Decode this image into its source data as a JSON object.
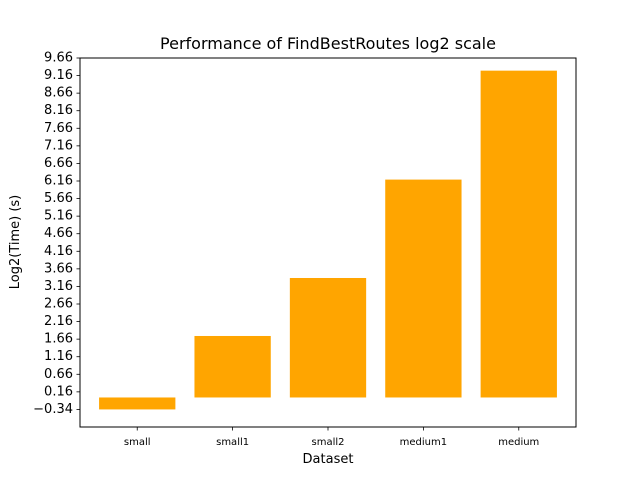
{
  "chart_data": {
    "type": "bar",
    "title": "Performance of FindBestRoutes log2 scale",
    "xlabel": "Dataset",
    "ylabel": "Log2(Time) (s)",
    "categories": [
      "small",
      "small1",
      "small2",
      "medium1",
      "medium"
    ],
    "values": [
      -0.34,
      1.75,
      3.4,
      6.2,
      9.3
    ],
    "ylim": [
      -0.84,
      9.66
    ],
    "yticks": [
      -0.34,
      0.16,
      0.66,
      1.16,
      1.66,
      2.16,
      2.66,
      3.16,
      3.66,
      4.16,
      4.66,
      5.16,
      5.66,
      6.16,
      6.66,
      7.16,
      7.66,
      8.16,
      8.66,
      9.16,
      9.66
    ],
    "yticklabels": [
      "−0.34",
      "0.16",
      "0.66",
      "1.16",
      "1.66",
      "2.16",
      "2.66",
      "3.16",
      "3.66",
      "4.16",
      "4.66",
      "5.16",
      "5.66",
      "6.16",
      "6.66",
      "7.16",
      "7.66",
      "8.16",
      "8.66",
      "9.16",
      "9.66"
    ],
    "bar_color": "#ffa500",
    "grid": false,
    "legend": "none"
  }
}
